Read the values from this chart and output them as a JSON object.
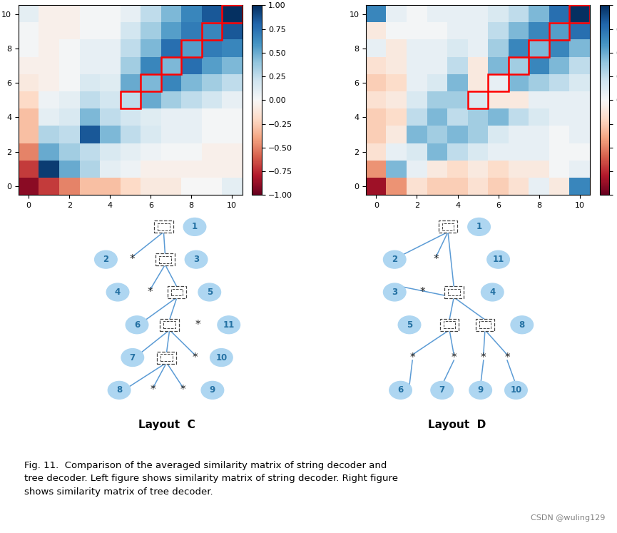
{
  "matrix_C": [
    [
      -0.9,
      -0.7,
      -0.5,
      -0.3,
      -0.3,
      -0.2,
      -0.1,
      -0.1,
      0.0,
      0.0,
      0.1
    ],
    [
      -0.7,
      0.95,
      0.5,
      0.3,
      0.1,
      0.05,
      -0.05,
      -0.05,
      -0.05,
      -0.05,
      -0.05
    ],
    [
      -0.5,
      0.5,
      0.35,
      0.25,
      0.15,
      0.1,
      0.05,
      0.02,
      0.02,
      -0.05,
      -0.05
    ],
    [
      -0.3,
      0.3,
      0.25,
      0.85,
      0.45,
      0.25,
      0.15,
      0.08,
      0.08,
      0.02,
      0.02
    ],
    [
      -0.3,
      0.1,
      0.15,
      0.45,
      0.25,
      0.18,
      0.12,
      0.08,
      0.08,
      0.02,
      0.02
    ],
    [
      -0.2,
      0.05,
      0.1,
      0.25,
      0.18,
      0.25,
      0.5,
      0.35,
      0.25,
      0.18,
      0.08
    ],
    [
      -0.1,
      -0.05,
      0.02,
      0.15,
      0.12,
      0.5,
      0.45,
      0.65,
      0.45,
      0.35,
      0.25
    ],
    [
      -0.05,
      -0.05,
      0.02,
      0.08,
      0.08,
      0.35,
      0.65,
      0.45,
      0.75,
      0.55,
      0.45
    ],
    [
      0.02,
      -0.05,
      0.02,
      0.08,
      0.08,
      0.25,
      0.45,
      0.75,
      0.55,
      0.7,
      0.65
    ],
    [
      0.02,
      -0.05,
      -0.05,
      0.02,
      0.02,
      0.18,
      0.35,
      0.55,
      0.7,
      0.65,
      0.85
    ],
    [
      0.1,
      -0.05,
      -0.05,
      0.02,
      0.02,
      0.08,
      0.25,
      0.45,
      0.65,
      0.85,
      1.0
    ]
  ],
  "matrix_D": [
    [
      -0.85,
      -0.45,
      -0.15,
      -0.25,
      -0.25,
      -0.15,
      -0.25,
      -0.15,
      0.08,
      -0.1,
      0.65
    ],
    [
      -0.45,
      0.45,
      0.08,
      -0.1,
      -0.18,
      -0.1,
      -0.18,
      -0.1,
      -0.1,
      0.02,
      0.08
    ],
    [
      -0.15,
      0.08,
      0.15,
      0.45,
      0.25,
      0.15,
      0.08,
      0.08,
      0.08,
      0.02,
      0.02
    ],
    [
      -0.25,
      -0.1,
      0.45,
      0.35,
      0.45,
      0.35,
      0.15,
      0.08,
      0.08,
      0.02,
      0.08
    ],
    [
      -0.25,
      -0.18,
      0.25,
      0.45,
      0.25,
      0.35,
      0.45,
      0.25,
      0.15,
      0.08,
      0.08
    ],
    [
      -0.15,
      -0.1,
      0.15,
      0.35,
      0.35,
      0.15,
      -0.1,
      -0.1,
      0.08,
      0.08,
      0.08
    ],
    [
      -0.25,
      -0.18,
      0.08,
      0.15,
      0.45,
      -0.1,
      0.08,
      0.45,
      0.35,
      0.25,
      0.15
    ],
    [
      -0.15,
      -0.1,
      0.08,
      0.08,
      0.25,
      -0.1,
      0.45,
      0.35,
      0.65,
      0.45,
      0.25
    ],
    [
      0.08,
      -0.1,
      0.08,
      0.08,
      0.15,
      0.08,
      0.35,
      0.65,
      0.45,
      0.65,
      0.45
    ],
    [
      -0.1,
      0.02,
      0.02,
      0.02,
      0.08,
      0.08,
      0.25,
      0.45,
      0.65,
      0.55,
      0.75
    ],
    [
      0.65,
      0.08,
      0.02,
      0.08,
      0.08,
      0.08,
      0.15,
      0.25,
      0.45,
      0.75,
      1.0
    ]
  ],
  "cmap": "RdBu",
  "vmin": -1.0,
  "vmax": 1.0,
  "background_color": "#ffffff",
  "fig_caption": "Fig. 11.  Comparison of the averaged similarity matrix of string decoder and\ntree decoder. Left figure shows similarity matrix of string decoder. Right figure\nshows similarity matrix of tree decoder.",
  "watermark": "CSDN @wuling129",
  "layout_C_label": "Layout  C",
  "layout_D_label": "Layout  D",
  "circle_color": "#AED6F1",
  "circle_text_color": "#2471A3",
  "line_color": "#5B9BD5",
  "red_box_color": "red"
}
